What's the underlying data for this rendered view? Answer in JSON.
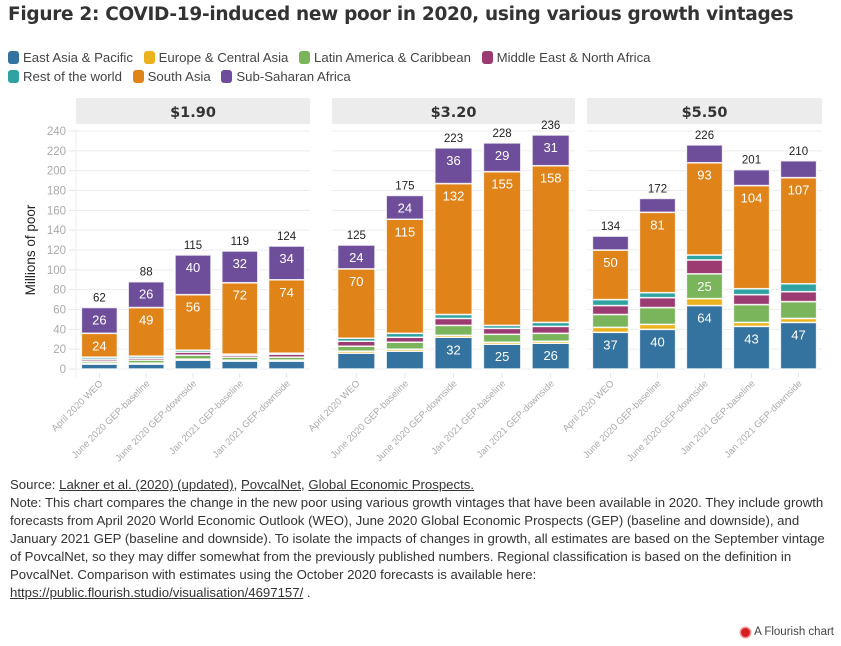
{
  "title": "Figure 2: COVID-19-induced new poor in 2020, using various growth vintages",
  "legend": [
    {
      "label": "East Asia & Pacific",
      "color": "#34729f"
    },
    {
      "label": "Europe & Central Asia",
      "color": "#ecb21d"
    },
    {
      "label": "Latin America & Caribbean",
      "color": "#7ab55c"
    },
    {
      "label": "Middle East & North Africa",
      "color": "#9b3b72"
    },
    {
      "label": "Rest of the world",
      "color": "#2fa3a1"
    },
    {
      "label": "South Asia",
      "color": "#e0841a"
    },
    {
      "label": "Sub-Saharan Africa",
      "color": "#6e4e9b"
    }
  ],
  "chart_data": {
    "type": "bar",
    "stacked": true,
    "title": "Figure 2: COVID-19-induced new poor in 2020, using various growth vintages",
    "ylabel": "Millions of poor",
    "xlabel": "",
    "ylim": [
      0,
      240
    ],
    "yticks": [
      0,
      20,
      40,
      60,
      80,
      100,
      120,
      140,
      160,
      180,
      200,
      220,
      240
    ],
    "grid": true,
    "legend_position": "top-left",
    "categories": [
      "April 2020 WEO",
      "June 2020 GEP-baseline",
      "June 2020 GEP-downside",
      "Jan 2021 GEP-baseline",
      "Jan 2021 GEP-downside"
    ],
    "panels": [
      {
        "title": "$1.90",
        "totals": [
          62,
          88,
          115,
          119,
          124
        ],
        "series": [
          {
            "name": "East Asia & Pacific",
            "values": [
              5,
              5,
              9,
              8,
              8
            ],
            "labels": [
              null,
              null,
              null,
              null,
              null
            ]
          },
          {
            "name": "Europe & Central Asia",
            "values": [
              1,
              1,
              1,
              1,
              1
            ],
            "labels": [
              null,
              null,
              null,
              null,
              null
            ]
          },
          {
            "name": "Latin America & Caribbean",
            "values": [
              2,
              3,
              4,
              3,
              3
            ],
            "labels": [
              null,
              null,
              null,
              null,
              null
            ]
          },
          {
            "name": "Middle East & North Africa",
            "values": [
              2,
              2,
              3,
              2,
              3
            ],
            "labels": [
              null,
              null,
              null,
              null,
              null
            ]
          },
          {
            "name": "Rest of the world",
            "values": [
              2,
              2,
              2,
              1,
              1
            ],
            "labels": [
              null,
              null,
              null,
              null,
              null
            ]
          },
          {
            "name": "South Asia",
            "values": [
              24,
              49,
              56,
              72,
              74
            ],
            "labels": [
              24,
              49,
              56,
              72,
              74
            ]
          },
          {
            "name": "Sub-Saharan Africa",
            "values": [
              26,
              26,
              40,
              32,
              34
            ],
            "labels": [
              26,
              26,
              40,
              32,
              34
            ]
          }
        ]
      },
      {
        "title": "$3.20",
        "totals": [
          125,
          175,
          223,
          228,
          236
        ],
        "series": [
          {
            "name": "East Asia & Pacific",
            "values": [
              16,
              18,
              32,
              25,
              26
            ],
            "labels": [
              null,
              null,
              32,
              25,
              26
            ]
          },
          {
            "name": "Europe & Central Asia",
            "values": [
              2,
              2,
              2,
              2,
              2
            ],
            "labels": [
              null,
              null,
              null,
              null,
              null
            ]
          },
          {
            "name": "Latin America & Caribbean",
            "values": [
              5,
              7,
              10,
              8,
              8
            ],
            "labels": [
              null,
              null,
              null,
              null,
              null
            ]
          },
          {
            "name": "Middle East & North Africa",
            "values": [
              5,
              5,
              7,
              6,
              7
            ],
            "labels": [
              null,
              null,
              null,
              null,
              null
            ]
          },
          {
            "name": "Rest of the world",
            "values": [
              3,
              4,
              4,
              3,
              4
            ],
            "labels": [
              null,
              null,
              null,
              null,
              null
            ]
          },
          {
            "name": "South Asia",
            "values": [
              70,
              115,
              132,
              155,
              158
            ],
            "labels": [
              70,
              115,
              132,
              155,
              158
            ]
          },
          {
            "name": "Sub-Saharan Africa",
            "values": [
              24,
              24,
              36,
              29,
              31
            ],
            "labels": [
              24,
              24,
              36,
              29,
              31
            ]
          }
        ]
      },
      {
        "title": "$5.50",
        "totals": [
          134,
          172,
          226,
          201,
          210
        ],
        "series": [
          {
            "name": "East Asia & Pacific",
            "values": [
              37,
              40,
              64,
              43,
              47
            ],
            "labels": [
              37,
              40,
              64,
              43,
              47
            ]
          },
          {
            "name": "Europe & Central Asia",
            "values": [
              5,
              5,
              7,
              4,
              4
            ],
            "labels": [
              null,
              null,
              null,
              null,
              null
            ]
          },
          {
            "name": "Latin America & Caribbean",
            "values": [
              13,
              17,
              25,
              18,
              17
            ],
            "labels": [
              null,
              null,
              25,
              null,
              null
            ]
          },
          {
            "name": "Middle East & North Africa",
            "values": [
              9,
              10,
              14,
              10,
              10
            ],
            "labels": [
              null,
              null,
              null,
              null,
              null
            ]
          },
          {
            "name": "Rest of the world",
            "values": [
              6,
              5,
              5,
              6,
              8
            ],
            "labels": [
              null,
              null,
              null,
              null,
              null
            ]
          },
          {
            "name": "South Asia",
            "values": [
              50,
              81,
              93,
              104,
              107
            ],
            "labels": [
              50,
              81,
              93,
              104,
              107
            ]
          },
          {
            "name": "Sub-Saharan Africa",
            "values": [
              14,
              14,
              18,
              16,
              17
            ],
            "labels": [
              null,
              null,
              null,
              null,
              null
            ]
          }
        ]
      }
    ]
  },
  "footer": {
    "source_prefix": "Source: ",
    "source_links": [
      "Lakner et al. (2020) (updated)",
      "PovcalNet",
      "Global Economic Prospects."
    ],
    "note": "Note: This chart compares the change in the new poor using various growth vintages that have been available in 2020. They include growth forecasts from April 2020 World Economic Outlook (WEO), June 2020 Global Economic Prospects (GEP) (baseline and downside), and January 2021 GEP (baseline and downside). To isolate the impacts of changes in growth, all estimates are based on the September vintage of PovcalNet, so they may differ somewhat from the previously published numbers. Regional classification is based on the definition in PovcalNet. Comparison with estimates using the October 2020 forecasts is available here:",
    "link": "https://public.flourish.studio/visualisation/4697157/",
    "link_suffix": " ."
  },
  "branding": "A Flourish chart"
}
